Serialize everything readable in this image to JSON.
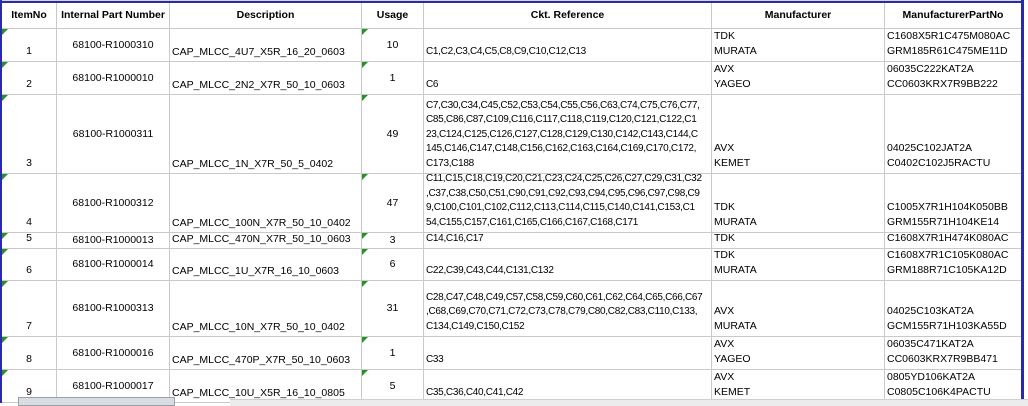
{
  "colors": {
    "outer_border_blue": "#2a2aad",
    "gridline_gray": "#c9c9c9",
    "error_indicator_green": "#279327"
  },
  "table": {
    "columns": [
      {
        "label": "ItemNo"
      },
      {
        "label": "Internal Part Number"
      },
      {
        "label": "Description"
      },
      {
        "label": "Usage"
      },
      {
        "label": "Ckt. Reference"
      },
      {
        "label": "Manufacturer"
      },
      {
        "label": "ManufacturerPartNo"
      }
    ],
    "rows": [
      {
        "item_no": "1",
        "internal_part_number": "68100-R1000310",
        "description": "CAP_MLCC_4U7_X5R_16_20_0603",
        "usage": "10",
        "ckt_reference": [
          "C1,C2,C3,C4,C5,C8,C9,C10,C12,C13"
        ],
        "manufacturers": [
          "TDK",
          "MURATA"
        ],
        "manufacturer_part_nos": [
          "C1608X5R1C475M080AC",
          "GRM185R61C475ME11D"
        ]
      },
      {
        "item_no": "2",
        "internal_part_number": "68100-R1000010",
        "description": "CAP_MLCC_2N2_X7R_50_10_0603",
        "usage": "1",
        "ckt_reference": [
          "C6"
        ],
        "manufacturers": [
          "AVX",
          "YAGEO"
        ],
        "manufacturer_part_nos": [
          "06035C222KAT2A",
          "CC0603KRX7R9BB222"
        ]
      },
      {
        "item_no": "3",
        "internal_part_number": "68100-R1000311",
        "description": "CAP_MLCC_1N_X7R_50_5_0402",
        "usage": "49",
        "ckt_reference": [
          "C7,C30,C34,C45,C52,C53,C54,C55,C56,C63,C74,C75,C76,C77,",
          "C85,C86,C87,C109,C116,C117,C118,C119,C120,C121,C122,C1",
          "23,C124,C125,C126,C127,C128,C129,C130,C142,C143,C144,C",
          "145,C146,C147,C148,C156,C162,C163,C164,C169,C170,C172,",
          "C173,C188"
        ],
        "manufacturers": [
          "AVX",
          "KEMET"
        ],
        "manufacturer_part_nos": [
          "04025C102JAT2A",
          "C0402C102J5RACTU"
        ]
      },
      {
        "item_no": "4",
        "internal_part_number": "68100-R1000312",
        "description": "CAP_MLCC_100N_X7R_50_10_0402",
        "usage": "47",
        "ckt_reference": [
          "C11,C15,C18,C19,C20,C21,C23,C24,C25,C26,C27,C29,C31,C32",
          ",C37,C38,C50,C51,C90,C91,C92,C93,C94,C95,C96,C97,C98,C9",
          "9,C100,C101,C102,C112,C113,C114,C115,C140,C141,C153,C1",
          "54,C155,C157,C161,C165,C166,C167,C168,C171"
        ],
        "manufacturers": [
          "TDK",
          "MURATA"
        ],
        "manufacturer_part_nos": [
          "C1005X7R1H104K050BB",
          "GRM155R71H104KE14"
        ]
      },
      {
        "item_no": "5",
        "internal_part_number": "68100-R1000013",
        "description": "CAP_MLCC_470N_X7R_50_10_0603",
        "usage": "3",
        "ckt_reference": [
          "C14,C16,C17"
        ],
        "manufacturers": [
          "TDK"
        ],
        "manufacturer_part_nos": [
          "C1608X7R1H474K080AC"
        ]
      },
      {
        "item_no": "6",
        "internal_part_number": "68100-R1000014",
        "description": "CAP_MLCC_1U_X7R_16_10_0603",
        "usage": "6",
        "ckt_reference": [
          "C22,C39,C43,C44,C131,C132"
        ],
        "manufacturers": [
          "TDK",
          "MURATA"
        ],
        "manufacturer_part_nos": [
          "C1608X7R1C105K080AC",
          "GRM188R71C105KA12D"
        ]
      },
      {
        "item_no": "7",
        "internal_part_number": "68100-R1000313",
        "description": "CAP_MLCC_10N_X7R_50_10_0402",
        "usage": "31",
        "ckt_reference": [
          "C28,C47,C48,C49,C57,C58,C59,C60,C61,C62,C64,C65,C66,C67",
          ",C68,C69,C70,C71,C72,C73,C78,C79,C80,C82,C83,C110,C133,",
          "C134,C149,C150,C152"
        ],
        "manufacturers": [
          "AVX",
          "MURATA"
        ],
        "manufacturer_part_nos": [
          "04025C103KAT2A",
          "GCM155R71H103KA55D"
        ]
      },
      {
        "item_no": "8",
        "internal_part_number": "68100-R1000016",
        "description": "CAP_MLCC_470P_X7R_50_10_0603",
        "usage": "1",
        "ckt_reference": [
          "C33"
        ],
        "manufacturers": [
          "AVX",
          "YAGEO"
        ],
        "manufacturer_part_nos": [
          "06035C471KAT2A",
          "CC0603KRX7R9BB471"
        ]
      },
      {
        "item_no": "9",
        "internal_part_number": "68100-R1000017",
        "description": "CAP_MLCC_10U_X5R_16_10_0805",
        "usage": "5",
        "ckt_reference": [
          "C35,C36,C40,C41,C42"
        ],
        "manufacturers": [
          "AVX",
          "KEMET"
        ],
        "manufacturer_part_nos": [
          "0805YD106KAT2A",
          "C0805C106K4PACTU"
        ]
      }
    ]
  }
}
